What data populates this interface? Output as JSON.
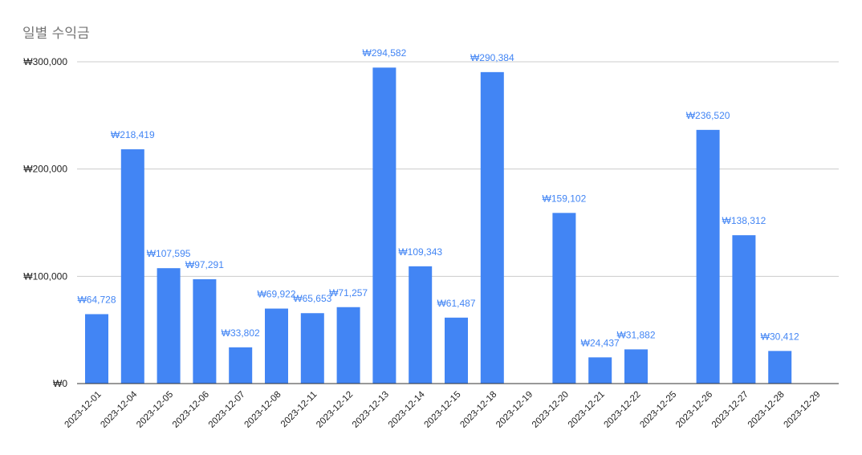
{
  "chart_data": {
    "type": "bar",
    "title": "일별 수익금",
    "xlabel": "",
    "ylabel": "",
    "ylim": [
      0,
      300000
    ],
    "yticks": [
      0,
      100000,
      200000,
      300000
    ],
    "ytick_labels": [
      "₩0",
      "₩100,000",
      "₩200,000",
      "₩300,000"
    ],
    "grid": true,
    "legend": "none",
    "bar_color": "#4285f4",
    "label_color": "#4285f4",
    "categories": [
      "2023-12-01",
      "2023-12-04",
      "2023-12-05",
      "2023-12-06",
      "2023-12-07",
      "2023-12-08",
      "2023-12-11",
      "2023-12-12",
      "2023-12-13",
      "2023-12-14",
      "2023-12-15",
      "2023-12-18",
      "2023-12-19",
      "2023-12-20",
      "2023-12-21",
      "2023-12-22",
      "2023-12-25",
      "2023-12-26",
      "2023-12-27",
      "2023-12-28",
      "2023-12-29"
    ],
    "values": [
      64728,
      218419,
      107595,
      97291,
      33802,
      69922,
      65653,
      71257,
      294582,
      109343,
      61487,
      290384,
      null,
      159102,
      24437,
      31882,
      null,
      236520,
      138312,
      30412,
      null
    ],
    "data_labels": [
      "₩64,728",
      "₩218,419",
      "₩107,595",
      "₩97,291",
      "₩33,802",
      "₩69,922",
      "₩65,653",
      "₩71,257",
      "₩294,582",
      "₩109,343",
      "₩61,487",
      "₩290,384",
      "",
      "₩159,102",
      "₩24,437",
      "₩31,882",
      "",
      "₩236,520",
      "₩138,312",
      "₩30,412",
      ""
    ]
  }
}
